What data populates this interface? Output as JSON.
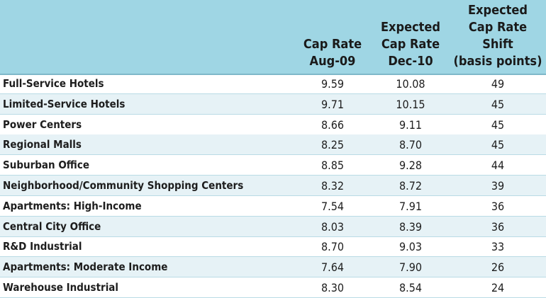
{
  "chart_data": {
    "type": "table",
    "columns": [
      {
        "key": "name",
        "lines": []
      },
      {
        "key": "aug09",
        "lines": [
          "Cap Rate",
          "Aug-09"
        ]
      },
      {
        "key": "dec10",
        "lines": [
          "Expected",
          "Cap Rate",
          "Dec-10"
        ]
      },
      {
        "key": "shift",
        "lines": [
          "Expected",
          "Cap Rate",
          "Shift",
          "(basis points)"
        ]
      }
    ],
    "rows": [
      {
        "name": "Full-Service Hotels",
        "aug09": "9.59",
        "dec10": "10.08",
        "shift": "49"
      },
      {
        "name": "Limited-Service Hotels",
        "aug09": "9.71",
        "dec10": "10.15",
        "shift": "45"
      },
      {
        "name": "Power Centers",
        "aug09": "8.66",
        "dec10": "9.11",
        "shift": "45"
      },
      {
        "name": "Regional Malls",
        "aug09": "8.25",
        "dec10": "8.70",
        "shift": "45"
      },
      {
        "name": "Suburban Office",
        "aug09": "8.85",
        "dec10": "9.28",
        "shift": "44"
      },
      {
        "name": "Neighborhood/Community Shopping Centers",
        "aug09": "8.32",
        "dec10": "8.72",
        "shift": "39"
      },
      {
        "name": "Apartments: High-Income",
        "aug09": "7.54",
        "dec10": "7.91",
        "shift": "36"
      },
      {
        "name": "Central City Office",
        "aug09": "8.03",
        "dec10": "8.39",
        "shift": "36"
      },
      {
        "name": "R&D Industrial",
        "aug09": "8.70",
        "dec10": "9.03",
        "shift": "33"
      },
      {
        "name": "Apartments: Moderate Income",
        "aug09": "7.64",
        "dec10": "7.90",
        "shift": "26"
      },
      {
        "name": "Warehouse Industrial",
        "aug09": "8.30",
        "dec10": "8.54",
        "shift": "24"
      }
    ],
    "colors": {
      "header_bg": "#9fd6e4",
      "alt_row": "#e6f2f6",
      "separator": "#b9dbe5"
    }
  }
}
